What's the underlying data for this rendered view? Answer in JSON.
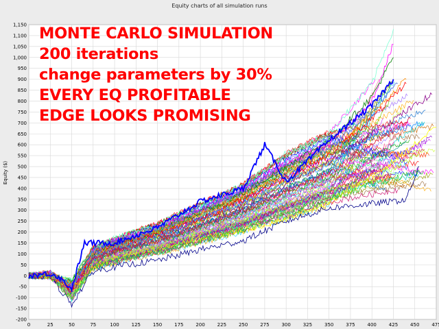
{
  "window": {
    "title": "Equity charts of all simulation runs"
  },
  "overlay_lines": [
    "MONTE CARLO SIMULATION",
    "200 iterations",
    "change parameters by 30%",
    "EVERY EQ PROFITABLE",
    "EDGE LOOKS PROMISING"
  ],
  "chart_data": {
    "type": "line",
    "title": "Equity charts of all simulation runs",
    "xlabel": "",
    "ylabel": "Equity ($)",
    "xlim": [
      0,
      475
    ],
    "ylim": [
      -200,
      1150
    ],
    "xticks": [
      0,
      25,
      50,
      75,
      100,
      125,
      150,
      175,
      200,
      225,
      250,
      275,
      300,
      325,
      350,
      375,
      400,
      425,
      450,
      475
    ],
    "yticks": [
      -200,
      -150,
      -100,
      -50,
      0,
      50,
      100,
      150,
      200,
      250,
      300,
      350,
      400,
      450,
      500,
      550,
      600,
      650,
      700,
      750,
      800,
      850,
      900,
      950,
      1000,
      1050,
      1100,
      1150
    ],
    "ytick_labels": [
      "-200",
      "-150",
      "-100",
      "-50",
      "0",
      "50",
      "100",
      "150",
      "200",
      "250",
      "300",
      "350",
      "400",
      "450",
      "500",
      "550",
      "600",
      "650",
      "700",
      "750",
      "800",
      "850",
      "900",
      "950",
      "1,000",
      "1,050",
      "1,100",
      "1,150"
    ],
    "grid": true,
    "series_count": 200,
    "series": [
      {
        "color": "#0000ff",
        "highlight": true,
        "x": [
          0,
          25,
          35,
          50,
          65,
          100,
          150,
          200,
          250,
          275,
          300,
          350,
          400,
          425
        ],
        "y": [
          0,
          10,
          -5,
          -60,
          150,
          150,
          220,
          340,
          400,
          600,
          430,
          620,
          780,
          900
        ]
      },
      {
        "color": "#7fffd4",
        "x": [
          0,
          25,
          50,
          75,
          100,
          150,
          200,
          250,
          300,
          350,
          400,
          425
        ],
        "y": [
          0,
          15,
          -40,
          120,
          170,
          230,
          320,
          420,
          560,
          650,
          880,
          1130
        ]
      },
      {
        "color": "#ff00ff",
        "x": [
          0,
          25,
          50,
          75,
          100,
          150,
          200,
          250,
          300,
          350,
          400,
          425
        ],
        "y": [
          0,
          10,
          -50,
          110,
          160,
          220,
          300,
          400,
          520,
          600,
          800,
          1060
        ]
      },
      {
        "color": "#008000",
        "x": [
          0,
          25,
          50,
          75,
          100,
          150,
          200,
          250,
          300,
          350,
          400,
          425
        ],
        "y": [
          0,
          5,
          -30,
          100,
          150,
          200,
          290,
          380,
          500,
          620,
          820,
          1000
        ]
      },
      {
        "color": "#ff8c00",
        "x": [
          0,
          25,
          50,
          75,
          100,
          150,
          200,
          250,
          300,
          350,
          400,
          440
        ],
        "y": [
          0,
          10,
          -40,
          100,
          140,
          200,
          280,
          360,
          470,
          560,
          740,
          900
        ]
      },
      {
        "color": "#8b008b",
        "x": [
          0,
          25,
          50,
          75,
          100,
          150,
          200,
          250,
          300,
          350,
          400,
          450,
          470
        ],
        "y": [
          0,
          0,
          -70,
          80,
          120,
          180,
          260,
          320,
          420,
          520,
          650,
          780,
          830
        ]
      },
      {
        "color": "#ff0000",
        "x": [
          0,
          25,
          50,
          75,
          100,
          150,
          200,
          250,
          300,
          350,
          400,
          440
        ],
        "y": [
          0,
          5,
          -60,
          90,
          140,
          190,
          260,
          350,
          450,
          550,
          720,
          880
        ]
      },
      {
        "color": "#1e90ff",
        "x": [
          0,
          25,
          50,
          75,
          100,
          150,
          200,
          250,
          300,
          350,
          400,
          460
        ],
        "y": [
          0,
          5,
          -50,
          90,
          130,
          180,
          260,
          330,
          430,
          510,
          640,
          700
        ]
      },
      {
        "color": "#ffff00",
        "x": [
          0,
          25,
          50,
          75,
          100,
          150,
          200,
          250,
          300,
          350,
          400,
          450,
          475
        ],
        "y": [
          0,
          -5,
          -60,
          40,
          80,
          120,
          170,
          210,
          260,
          340,
          450,
          600,
          680
        ]
      },
      {
        "color": "#00008b",
        "x": [
          0,
          25,
          50,
          75,
          100,
          150,
          200,
          250,
          300,
          350,
          400,
          425,
          440,
          455
        ],
        "y": [
          0,
          -5,
          -130,
          20,
          40,
          70,
          120,
          160,
          250,
          310,
          330,
          340,
          350,
          500
        ]
      },
      {
        "color": "#adff2f",
        "x": [
          0,
          25,
          50,
          75,
          100,
          150,
          200,
          250,
          300,
          350,
          400,
          455
        ],
        "y": [
          0,
          0,
          -90,
          60,
          90,
          130,
          190,
          250,
          320,
          390,
          440,
          560
        ]
      },
      {
        "color": "#32cd32",
        "x": [
          0,
          25,
          50,
          75,
          100,
          150,
          200,
          250,
          300,
          350,
          400,
          460
        ],
        "y": [
          0,
          -5,
          -100,
          40,
          70,
          110,
          160,
          210,
          290,
          350,
          420,
          480
        ]
      },
      {
        "color": "#4169e1",
        "x": [
          0,
          25,
          50,
          75,
          100,
          150,
          200,
          250,
          300,
          350,
          400,
          430
        ],
        "y": [
          0,
          10,
          -45,
          110,
          150,
          210,
          300,
          390,
          500,
          580,
          760,
          880
        ]
      },
      {
        "color": "#dc143c",
        "x": [
          0,
          25,
          50,
          75,
          100,
          150,
          200,
          250,
          300,
          350,
          400,
          445
        ],
        "y": [
          0,
          0,
          -70,
          70,
          110,
          160,
          230,
          300,
          390,
          470,
          600,
          720
        ]
      }
    ]
  }
}
